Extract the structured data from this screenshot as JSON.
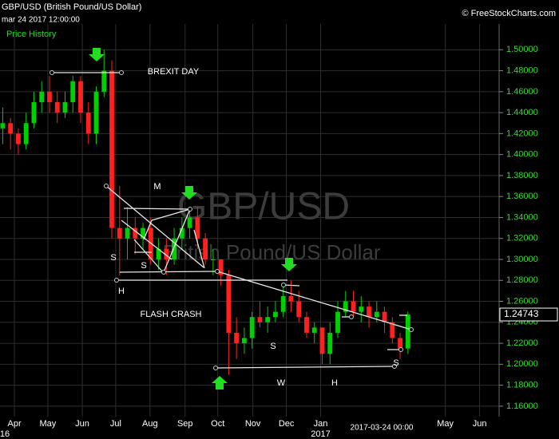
{
  "chart_data": {
    "type": "candlestick",
    "title": "GBP/USD (British Pound/US Dollar)",
    "subtitle": "mar 24 2017 12:00:00",
    "legend_label": "Price History",
    "source": "© FreeStockCharts.com",
    "watermark": [
      "GBP/USD",
      "British Pound/US Dollar"
    ],
    "up_color": "#00d000",
    "down_color": "#ff2020",
    "grid": true,
    "x": [
      -1.5,
      -0.5,
      0.5,
      1.5,
      2.5,
      3.5,
      4.5,
      5.5,
      6.5,
      7.5,
      8.5,
      9.5,
      10.5,
      11.5,
      12.5,
      13.5,
      14.5,
      15.5,
      16.5,
      17.5,
      18.5,
      19.5,
      20.5,
      21.5,
      22.5,
      23.5,
      24.5,
      25.5,
      26.5,
      27.5,
      28.5,
      29.5,
      30.5,
      31.5,
      32.5,
      33.5,
      34.5,
      35.5,
      36.5,
      37.5,
      38.5,
      39.5,
      40.5,
      41.5,
      42.5,
      43.5,
      44.5,
      45.5,
      46.5,
      47.5,
      48.5,
      49.5,
      50.5
    ],
    "open": [
      1.425,
      1.43,
      1.42,
      1.41,
      1.43,
      1.45,
      1.46,
      1.45,
      1.44,
      1.45,
      1.47,
      1.44,
      1.42,
      1.46,
      1.48,
      1.33,
      1.32,
      1.33,
      1.32,
      1.33,
      1.3,
      1.31,
      1.3,
      1.32,
      1.33,
      1.34,
      1.32,
      1.3,
      1.3,
      1.285,
      1.23,
      1.22,
      1.225,
      1.245,
      1.24,
      1.245,
      1.25,
      1.265,
      1.26,
      1.245,
      1.23,
      1.235,
      1.21,
      1.23,
      1.25,
      1.26,
      1.25,
      1.255,
      1.245,
      1.25,
      1.24,
      1.225,
      1.215
    ],
    "high": [
      1.445,
      1.435,
      1.425,
      1.44,
      1.46,
      1.47,
      1.475,
      1.46,
      1.46,
      1.475,
      1.475,
      1.45,
      1.465,
      1.5,
      1.49,
      1.37,
      1.35,
      1.34,
      1.335,
      1.34,
      1.32,
      1.32,
      1.33,
      1.34,
      1.35,
      1.35,
      1.325,
      1.31,
      1.3,
      1.29,
      1.245,
      1.235,
      1.25,
      1.26,
      1.255,
      1.26,
      1.275,
      1.28,
      1.27,
      1.25,
      1.24,
      1.235,
      1.24,
      1.26,
      1.27,
      1.27,
      1.265,
      1.26,
      1.26,
      1.255,
      1.245,
      1.23,
      1.25
    ],
    "low": [
      1.41,
      1.405,
      1.4,
      1.405,
      1.425,
      1.44,
      1.44,
      1.43,
      1.435,
      1.44,
      1.43,
      1.41,
      1.41,
      1.455,
      1.32,
      1.285,
      1.3,
      1.305,
      1.31,
      1.295,
      1.29,
      1.285,
      1.295,
      1.31,
      1.32,
      1.31,
      1.295,
      1.285,
      1.275,
      1.19,
      1.205,
      1.21,
      1.215,
      1.235,
      1.23,
      1.24,
      1.245,
      1.25,
      1.24,
      1.225,
      1.22,
      1.2,
      1.2,
      1.225,
      1.245,
      1.245,
      1.24,
      1.235,
      1.24,
      1.23,
      1.22,
      1.205,
      1.21
    ],
    "close": [
      1.43,
      1.42,
      1.41,
      1.43,
      1.45,
      1.46,
      1.45,
      1.44,
      1.45,
      1.47,
      1.44,
      1.42,
      1.46,
      1.48,
      1.33,
      1.32,
      1.33,
      1.32,
      1.33,
      1.3,
      1.31,
      1.3,
      1.32,
      1.33,
      1.34,
      1.32,
      1.3,
      1.3,
      1.285,
      1.23,
      1.22,
      1.225,
      1.245,
      1.24,
      1.245,
      1.25,
      1.265,
      1.26,
      1.245,
      1.23,
      1.235,
      1.21,
      1.23,
      1.25,
      1.26,
      1.25,
      1.255,
      1.245,
      1.25,
      1.24,
      1.225,
      1.215,
      1.24743
    ],
    "last_price": 1.24743,
    "xlim": [
      -1.85,
      62.2
    ],
    "ylim": [
      1.15,
      1.517
    ],
    "xticks": [
      {
        "value": 0,
        "label": "Apr"
      },
      {
        "value": 4.29,
        "label": "May"
      },
      {
        "value": 8.71,
        "label": "Jun"
      },
      {
        "value": 13.0,
        "label": "Jul"
      },
      {
        "value": 17.4,
        "label": "Aug"
      },
      {
        "value": 21.9,
        "label": "Sep"
      },
      {
        "value": 26.1,
        "label": "Oct"
      },
      {
        "value": 30.6,
        "label": "Nov"
      },
      {
        "value": 34.9,
        "label": "Dec"
      },
      {
        "value": 39.3,
        "label": "Jan"
      },
      {
        "value": 55.3,
        "label": "May"
      },
      {
        "value": 59.7,
        "label": "Jun"
      }
    ],
    "year_labels": [
      {
        "value": -1.85,
        "label": "16"
      },
      {
        "value": 39.3,
        "label": "2017"
      }
    ],
    "cursor_label": "2017-03-24 00:00",
    "yticks": [
      {
        "value": 1.16,
        "label": "1.16000"
      },
      {
        "value": 1.18,
        "label": "1.18000"
      },
      {
        "value": 1.2,
        "label": "1.20000"
      },
      {
        "value": 1.22,
        "label": "1.22000"
      },
      {
        "value": 1.24,
        "label": "1.24000"
      },
      {
        "value": 1.26,
        "label": "1.26000"
      },
      {
        "value": 1.28,
        "label": "1.28000"
      },
      {
        "value": 1.3,
        "label": "1.30000"
      },
      {
        "value": 1.32,
        "label": "1.32000"
      },
      {
        "value": 1.34,
        "label": "1.34000"
      },
      {
        "value": 1.36,
        "label": "1.36000"
      },
      {
        "value": 1.38,
        "label": "1.38000"
      },
      {
        "value": 1.4,
        "label": "1.40000"
      },
      {
        "value": 1.42,
        "label": "1.42000"
      },
      {
        "value": 1.44,
        "label": "1.44000"
      },
      {
        "value": 1.46,
        "label": "1.46000"
      },
      {
        "value": 1.48,
        "label": "1.48000"
      },
      {
        "value": 1.5,
        "label": "1.50000"
      }
    ],
    "annotations": [
      "BREXIT DAY",
      "M",
      "S",
      "S",
      "H",
      "FLASH CRASH",
      "S",
      "W",
      "H",
      "S"
    ]
  }
}
